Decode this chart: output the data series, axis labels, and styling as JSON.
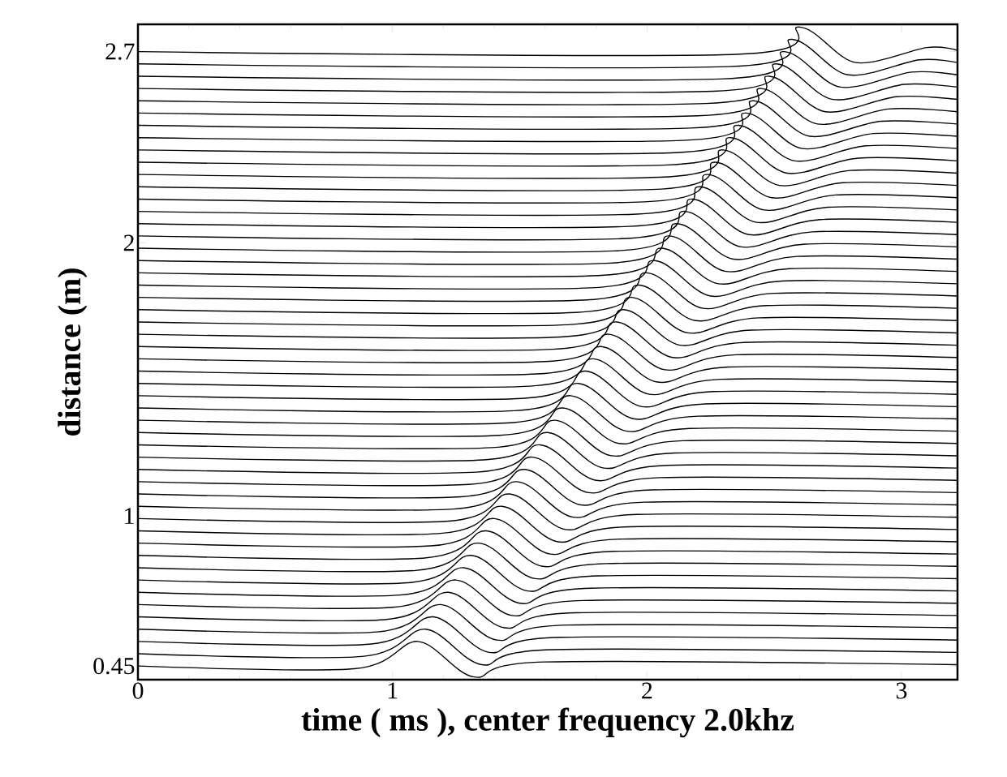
{
  "chart_data": {
    "type": "line",
    "xlabel": "time ( ms ), center frequency 2.0khz",
    "ylabel": "distance (m)",
    "color": "#000000",
    "line_style": "solid",
    "xlim": [
      0,
      3.22
    ],
    "ylim": [
      0.4,
      2.8
    ],
    "xticks": [
      0,
      1,
      2,
      3
    ],
    "yticks": [
      0.45,
      1,
      2,
      2.7
    ],
    "series": [
      {
        "x": [
          0,
          0.85,
          1.1,
          1.32,
          1.6,
          3.22
        ],
        "values": [
          0.45,
          0.44,
          0.54,
          0.41,
          0.465,
          0.455
        ]
      },
      {
        "x": [
          0,
          0.88,
          1.13,
          1.35,
          1.63,
          3.22
        ],
        "values": [
          0.495,
          0.485,
          0.585,
          0.455,
          0.51,
          0.5
        ]
      },
      {
        "x": [
          0,
          0.91,
          1.16,
          1.38,
          1.66,
          3.22
        ],
        "values": [
          0.54,
          0.53,
          0.63,
          0.5,
          0.555,
          0.545
        ]
      },
      {
        "x": [
          0,
          0.94,
          1.19,
          1.41,
          1.69,
          3.22
        ],
        "values": [
          0.585,
          0.575,
          0.675,
          0.545,
          0.6,
          0.59
        ]
      },
      {
        "x": [
          0,
          0.97,
          1.22,
          1.44,
          1.72,
          3.22
        ],
        "values": [
          0.63,
          0.62,
          0.72,
          0.59,
          0.645,
          0.635
        ]
      },
      {
        "x": [
          0,
          1.0,
          1.25,
          1.47,
          1.75,
          3.22
        ],
        "values": [
          0.675,
          0.665,
          0.765,
          0.635,
          0.69,
          0.68
        ]
      },
      {
        "x": [
          0,
          1.03,
          1.28,
          1.5,
          1.78,
          3.22
        ],
        "values": [
          0.72,
          0.71,
          0.81,
          0.68,
          0.735,
          0.725
        ]
      },
      {
        "x": [
          0,
          1.06,
          1.31,
          1.53,
          1.81,
          3.22
        ],
        "values": [
          0.765,
          0.755,
          0.855,
          0.725,
          0.78,
          0.77
        ]
      },
      {
        "x": [
          0,
          1.09,
          1.34,
          1.56,
          1.84,
          3.22
        ],
        "values": [
          0.81,
          0.8,
          0.9,
          0.77,
          0.825,
          0.815
        ]
      },
      {
        "x": [
          0,
          1.12,
          1.37,
          1.59,
          1.87,
          3.22
        ],
        "values": [
          0.855,
          0.845,
          0.945,
          0.815,
          0.87,
          0.86
        ]
      },
      {
        "x": [
          0,
          1.15,
          1.4,
          1.62,
          1.9,
          3.22
        ],
        "values": [
          0.9,
          0.89,
          0.99,
          0.86,
          0.915,
          0.905
        ]
      },
      {
        "x": [
          0,
          1.18,
          1.43,
          1.65,
          1.93,
          3.22
        ],
        "values": [
          0.945,
          0.935,
          1.035,
          0.905,
          0.96,
          0.95
        ]
      },
      {
        "x": [
          0,
          1.21,
          1.46,
          1.68,
          1.96,
          3.22
        ],
        "values": [
          0.99,
          0.98,
          1.08,
          0.95,
          1.005,
          0.995
        ]
      },
      {
        "x": [
          0,
          1.24,
          1.49,
          1.71,
          1.99,
          3.22
        ],
        "values": [
          1.035,
          1.025,
          1.125,
          0.995,
          1.05,
          1.04
        ]
      },
      {
        "x": [
          0,
          1.27,
          1.52,
          1.74,
          2.02,
          3.22
        ],
        "values": [
          1.08,
          1.07,
          1.17,
          1.04,
          1.095,
          1.085
        ]
      },
      {
        "x": [
          0,
          1.3,
          1.55,
          1.77,
          2.05,
          3.22
        ],
        "values": [
          1.125,
          1.115,
          1.215,
          1.085,
          1.14,
          1.13
        ]
      },
      {
        "x": [
          0,
          1.33,
          1.58,
          1.8,
          2.08,
          3.22
        ],
        "values": [
          1.17,
          1.16,
          1.26,
          1.13,
          1.185,
          1.175
        ]
      },
      {
        "x": [
          0,
          1.36,
          1.61,
          1.83,
          2.11,
          3.22
        ],
        "values": [
          1.215,
          1.205,
          1.305,
          1.175,
          1.23,
          1.22
        ]
      },
      {
        "x": [
          0,
          1.39,
          1.64,
          1.86,
          2.14,
          3.22
        ],
        "values": [
          1.26,
          1.25,
          1.35,
          1.22,
          1.275,
          1.265
        ]
      },
      {
        "x": [
          0,
          1.42,
          1.67,
          1.89,
          2.17,
          3.22
        ],
        "values": [
          1.305,
          1.295,
          1.395,
          1.265,
          1.32,
          1.31
        ]
      },
      {
        "x": [
          0,
          1.45,
          1.7,
          1.92,
          2.2,
          3.22
        ],
        "values": [
          1.35,
          1.34,
          1.44,
          1.31,
          1.365,
          1.355
        ]
      },
      {
        "x": [
          0,
          1.48,
          1.73,
          1.95,
          2.23,
          3.22
        ],
        "values": [
          1.395,
          1.385,
          1.485,
          1.355,
          1.41,
          1.4
        ]
      },
      {
        "x": [
          0,
          1.51,
          1.76,
          1.98,
          2.26,
          3.22
        ],
        "values": [
          1.44,
          1.43,
          1.53,
          1.4,
          1.455,
          1.445
        ]
      },
      {
        "x": [
          0,
          1.54,
          1.79,
          2.01,
          2.29,
          3.22
        ],
        "values": [
          1.485,
          1.475,
          1.575,
          1.445,
          1.5,
          1.49
        ]
      },
      {
        "x": [
          0,
          1.57,
          1.82,
          2.04,
          2.32,
          3.22
        ],
        "values": [
          1.53,
          1.52,
          1.62,
          1.49,
          1.545,
          1.535
        ]
      },
      {
        "x": [
          0,
          1.6,
          1.85,
          2.07,
          2.35,
          3.22
        ],
        "values": [
          1.575,
          1.565,
          1.665,
          1.535,
          1.59,
          1.58
        ]
      },
      {
        "x": [
          0,
          1.63,
          1.88,
          2.1,
          2.38,
          3.22
        ],
        "values": [
          1.62,
          1.61,
          1.71,
          1.58,
          1.635,
          1.625
        ]
      },
      {
        "x": [
          0,
          1.66,
          1.91,
          2.13,
          2.41,
          3.22
        ],
        "values": [
          1.665,
          1.655,
          1.755,
          1.625,
          1.68,
          1.67
        ]
      },
      {
        "x": [
          0,
          1.69,
          1.94,
          2.16,
          2.44,
          3.22
        ],
        "values": [
          1.71,
          1.7,
          1.8,
          1.67,
          1.725,
          1.715
        ]
      },
      {
        "x": [
          0,
          1.72,
          1.97,
          2.19,
          2.47,
          3.22
        ],
        "values": [
          1.755,
          1.745,
          1.845,
          1.715,
          1.77,
          1.76
        ]
      },
      {
        "x": [
          0,
          1.75,
          2.0,
          2.22,
          2.5,
          3.22
        ],
        "values": [
          1.8,
          1.79,
          1.89,
          1.76,
          1.815,
          1.805
        ]
      },
      {
        "x": [
          0,
          1.78,
          2.03,
          2.25,
          2.53,
          3.22
        ],
        "values": [
          1.845,
          1.835,
          1.935,
          1.805,
          1.86,
          1.85
        ]
      },
      {
        "x": [
          0,
          1.81,
          2.06,
          2.28,
          2.56,
          3.22
        ],
        "values": [
          1.89,
          1.88,
          1.98,
          1.85,
          1.905,
          1.895
        ]
      },
      {
        "x": [
          0,
          1.84,
          2.09,
          2.31,
          2.59,
          3.22
        ],
        "values": [
          1.935,
          1.925,
          2.025,
          1.895,
          1.95,
          1.94
        ]
      },
      {
        "x": [
          0,
          1.87,
          2.12,
          2.34,
          2.62,
          3.22
        ],
        "values": [
          1.98,
          1.97,
          2.07,
          1.94,
          1.995,
          1.985
        ]
      },
      {
        "x": [
          0,
          1.9,
          2.15,
          2.37,
          2.65,
          3.22
        ],
        "values": [
          2.025,
          2.015,
          2.115,
          1.985,
          2.04,
          2.03
        ]
      },
      {
        "x": [
          0,
          1.93,
          2.18,
          2.4,
          2.68,
          3.22
        ],
        "values": [
          2.07,
          2.06,
          2.16,
          2.03,
          2.085,
          2.075
        ]
      },
      {
        "x": [
          0,
          1.96,
          2.21,
          2.43,
          2.71,
          3.22
        ],
        "values": [
          2.115,
          2.105,
          2.205,
          2.075,
          2.13,
          2.12
        ]
      },
      {
        "x": [
          0,
          1.99,
          2.24,
          2.46,
          2.74,
          3.22
        ],
        "values": [
          2.16,
          2.15,
          2.25,
          2.12,
          2.175,
          2.165
        ]
      },
      {
        "x": [
          0,
          2.02,
          2.27,
          2.49,
          2.77,
          3.22
        ],
        "values": [
          2.205,
          2.195,
          2.295,
          2.165,
          2.22,
          2.21
        ]
      },
      {
        "x": [
          0,
          2.05,
          2.3,
          2.52,
          2.8,
          3.22
        ],
        "values": [
          2.25,
          2.24,
          2.34,
          2.21,
          2.265,
          2.255
        ]
      },
      {
        "x": [
          0,
          2.08,
          2.33,
          2.55,
          2.83,
          3.22
        ],
        "values": [
          2.295,
          2.285,
          2.385,
          2.255,
          2.31,
          2.3
        ]
      },
      {
        "x": [
          0,
          2.11,
          2.36,
          2.58,
          2.86,
          3.22
        ],
        "values": [
          2.34,
          2.33,
          2.43,
          2.3,
          2.355,
          2.345
        ]
      },
      {
        "x": [
          0,
          2.14,
          2.39,
          2.61,
          2.89,
          3.22
        ],
        "values": [
          2.385,
          2.375,
          2.475,
          2.345,
          2.4,
          2.39
        ]
      },
      {
        "x": [
          0,
          2.17,
          2.42,
          2.64,
          2.92,
          3.22
        ],
        "values": [
          2.43,
          2.42,
          2.52,
          2.39,
          2.445,
          2.435
        ]
      },
      {
        "x": [
          0,
          2.2,
          2.45,
          2.67,
          2.95,
          3.22
        ],
        "values": [
          2.475,
          2.465,
          2.565,
          2.435,
          2.49,
          2.48
        ]
      },
      {
        "x": [
          0,
          2.23,
          2.48,
          2.7,
          2.98,
          3.22
        ],
        "values": [
          2.52,
          2.51,
          2.61,
          2.48,
          2.535,
          2.525
        ]
      },
      {
        "x": [
          0,
          2.26,
          2.51,
          2.73,
          3.01,
          3.22
        ],
        "values": [
          2.565,
          2.555,
          2.655,
          2.525,
          2.58,
          2.57
        ]
      },
      {
        "x": [
          0,
          2.29,
          2.54,
          2.76,
          3.04,
          3.22
        ],
        "values": [
          2.61,
          2.6,
          2.7,
          2.57,
          2.625,
          2.615
        ]
      },
      {
        "x": [
          0,
          2.32,
          2.57,
          2.79,
          3.07,
          3.22
        ],
        "values": [
          2.655,
          2.645,
          2.745,
          2.615,
          2.67,
          2.66
        ]
      },
      {
        "x": [
          0,
          2.35,
          2.6,
          2.82,
          3.1,
          3.22
        ],
        "values": [
          2.7,
          2.69,
          2.79,
          2.66,
          2.715,
          2.705
        ]
      }
    ]
  }
}
